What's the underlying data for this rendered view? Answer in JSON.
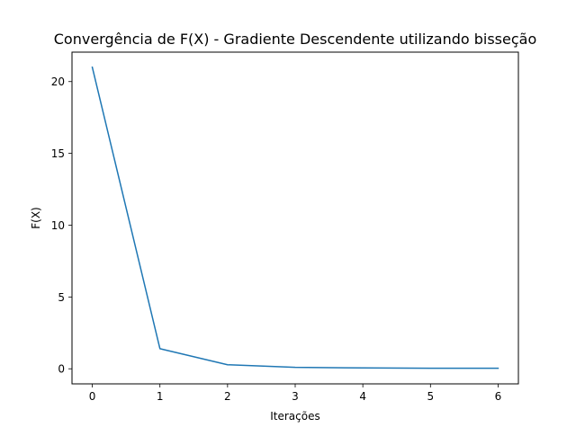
{
  "chart_data": {
    "type": "line",
    "title": "Convergência de F(X) - Gradiente Descendente utilizando bisseção",
    "xlabel": "Iterações",
    "ylabel": "F(X)",
    "xlim": [
      -0.3,
      6.3
    ],
    "ylim": [
      -1.05,
      22.05
    ],
    "xticks": [
      0,
      1,
      2,
      3,
      4,
      5,
      6
    ],
    "yticks": [
      0,
      5,
      10,
      15,
      20
    ],
    "grid": false,
    "series": [
      {
        "color": "#1f77b4",
        "x": [
          0,
          1,
          2,
          3,
          4,
          5,
          6
        ],
        "y": [
          21.0,
          1.4,
          0.28,
          0.1,
          0.06,
          0.04,
          0.04
        ]
      }
    ]
  }
}
